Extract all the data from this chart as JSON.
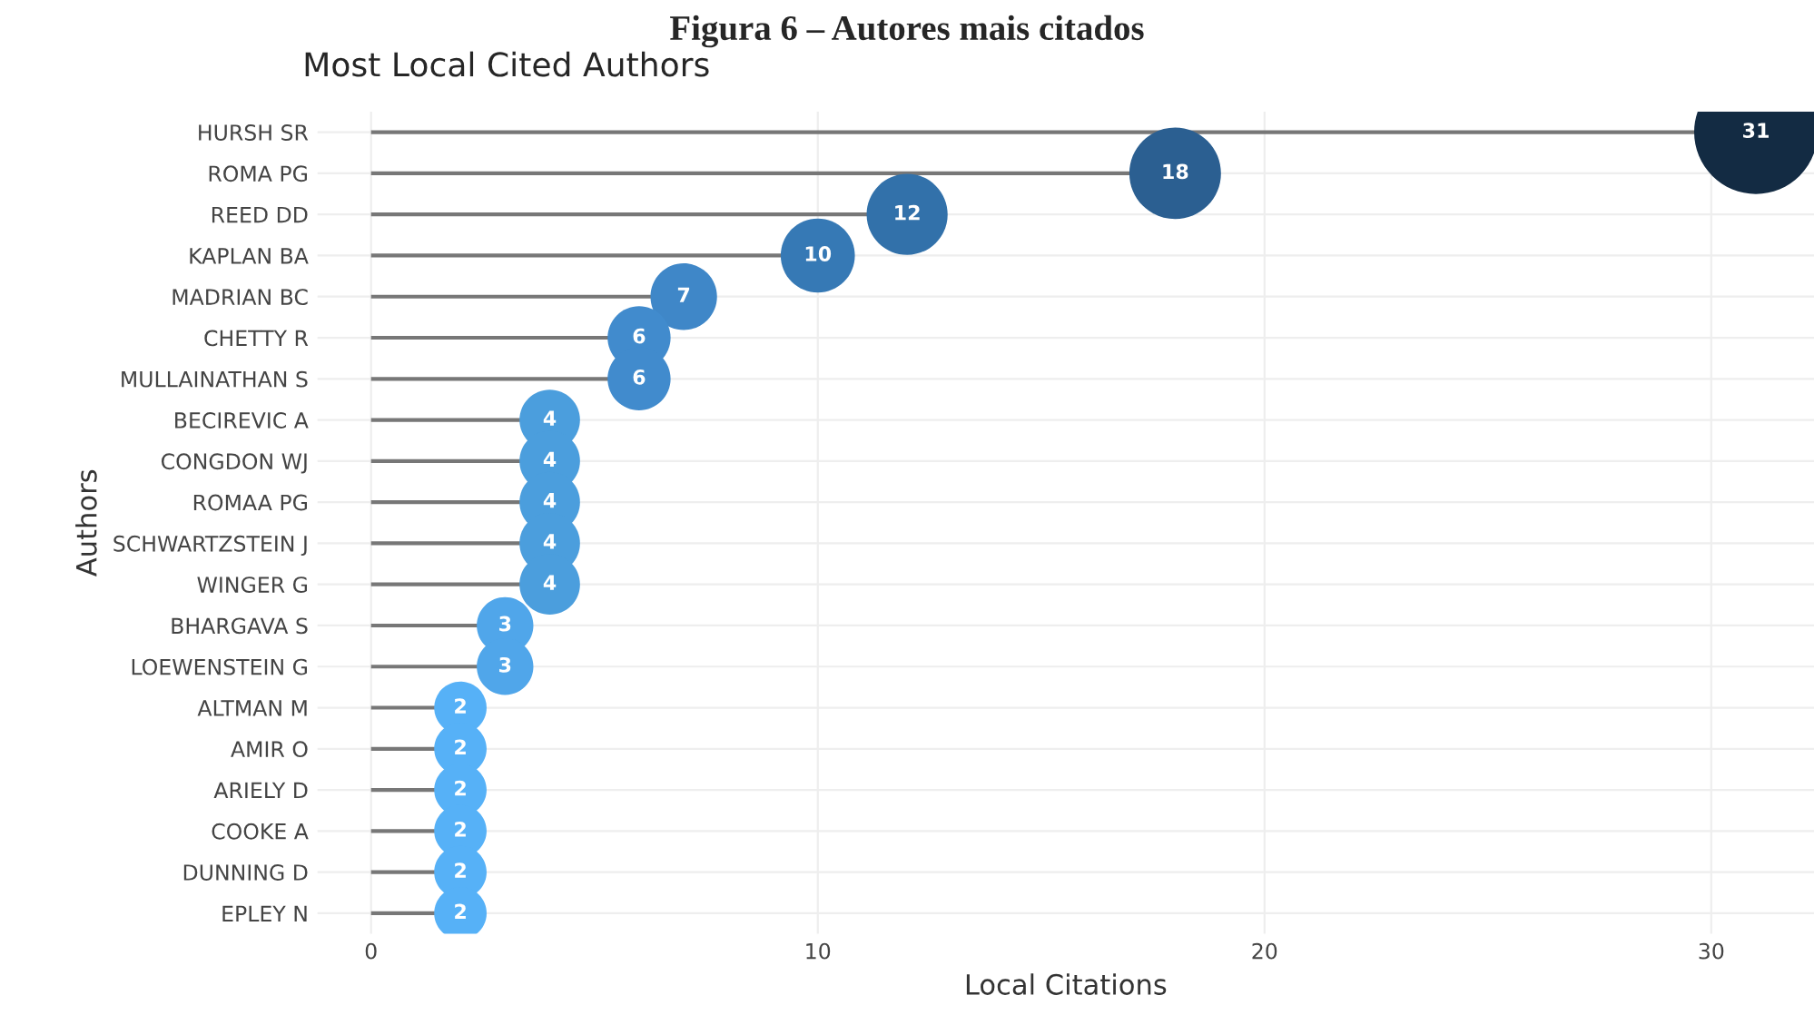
{
  "chart_data": {
    "type": "lollipop",
    "orientation": "horizontal",
    "title": "Most Local Cited Authors",
    "xlabel": "Local Citations",
    "ylabel": "Authors",
    "annotations": [
      "Figura 6 – Autores mais citados"
    ],
    "categories": [
      "HURSH SR",
      "ROMA PG",
      "REED DD",
      "KAPLAN BA",
      "MADRIAN BC",
      "CHETTY R",
      "MULLAINATHAN S",
      "BECIREVIC A",
      "CONGDON WJ",
      "ROMAA PG",
      "SCHWARTZSTEIN J",
      "WINGER G",
      "BHARGAVA S",
      "LOEWENSTEIN G",
      "ALTMAN M",
      "AMIR O",
      "ARIELY D",
      "COOKE A",
      "DUNNING D",
      "EPLEY N"
    ],
    "values": [
      31,
      18,
      12,
      10,
      7,
      6,
      6,
      4,
      4,
      4,
      4,
      4,
      3,
      3,
      2,
      2,
      2,
      2,
      2,
      2
    ],
    "colors": [
      "#132b43",
      "#2b5f91",
      "#3271aa",
      "#3679b5",
      "#3f87c8",
      "#418bcd",
      "#418bcd",
      "#4b9edd",
      "#4b9edd",
      "#4b9edd",
      "#4b9edd",
      "#4b9edd",
      "#50a6ea",
      "#50a6ea",
      "#56b1f7",
      "#56b1f7",
      "#56b1f7",
      "#56b1f7",
      "#56b1f7",
      "#56b1f7"
    ],
    "sizes": [
      1,
      0.55,
      0.43,
      0.36,
      0.29,
      0.26,
      0.26,
      0.24,
      0.24,
      0.24,
      0.24,
      0.24,
      0.21,
      0.21,
      0.18,
      0.18,
      0.18,
      0.18,
      0.18,
      0.18
    ],
    "xlim": [
      -1.2,
      32.3
    ],
    "xticks": [
      0,
      10,
      20,
      30
    ],
    "data_labels": true,
    "grid": true
  }
}
